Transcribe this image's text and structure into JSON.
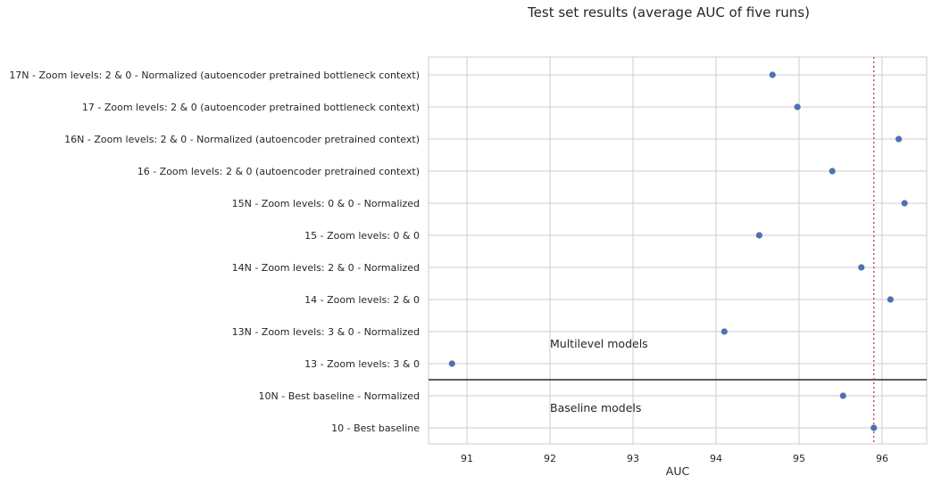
{
  "chart_data": {
    "type": "scatter",
    "title": "Test set results (average AUC of five runs)",
    "xlabel": "AUC",
    "ylabel": "",
    "xlim": [
      90.5,
      96.55
    ],
    "xticks": [
      91,
      92,
      93,
      94,
      95,
      96
    ],
    "grid": true,
    "legend": "none",
    "categories": [
      "17N - Zoom levels: 2 & 0 - Normalized (autoencoder pretrained bottleneck context)",
      "17 - Zoom levels: 2 & 0 (autoencoder pretrained bottleneck context)",
      "16N - Zoom levels: 2 & 0 - Normalized (autoencoder pretrained context)",
      "16 - Zoom levels: 2 & 0 (autoencoder pretrained context)",
      "15N - Zoom levels: 0 & 0 - Normalized",
      "15 - Zoom levels: 0 & 0",
      "14N - Zoom levels: 2 & 0 - Normalized",
      "14 - Zoom levels: 2 & 0",
      "13N - Zoom levels: 3 & 0 - Normalized",
      "13 - Zoom levels: 3 & 0",
      "10N - Best baseline - Normalized",
      "10 - Best baseline"
    ],
    "values": [
      94.68,
      94.98,
      96.2,
      95.4,
      96.27,
      94.52,
      95.75,
      96.1,
      94.1,
      90.82,
      95.53,
      95.9
    ],
    "reference_line": {
      "x": 95.9,
      "style": "dotted",
      "color": "#c44e52"
    },
    "separator_after_index": 9,
    "annotations": [
      "Multilevel models",
      "Baseline models"
    ],
    "marker_color": "#4c72b0"
  }
}
